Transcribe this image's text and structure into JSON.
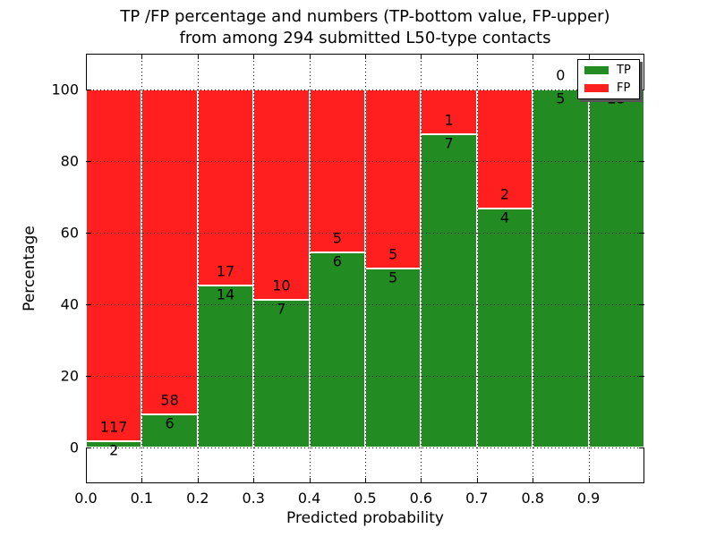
{
  "figure": {
    "title_line1": "TP /FP percentage and numbers (TP-bottom value, FP-upper)",
    "title_line2": "from among 294 submitted L50-type contacts"
  },
  "chart_data": {
    "type": "bar",
    "subtype": "stacked-100-percent",
    "title": "TP /FP percentage and numbers (TP-bottom value, FP-upper) from among 294 submitted L50-type contacts",
    "total_contacts": 294,
    "xlabel": "Predicted probability",
    "ylabel": "Percentage",
    "xlim": [
      0.0,
      1.0
    ],
    "ylim": [
      -10,
      110
    ],
    "bin_width": 0.1,
    "bin_starts": [
      0.0,
      0.1,
      0.2,
      0.3,
      0.4,
      0.5,
      0.6,
      0.7,
      0.8,
      0.9
    ],
    "x_tick_labels": [
      "0.0",
      "0.1",
      "0.2",
      "0.3",
      "0.4",
      "0.5",
      "0.6",
      "0.7",
      "0.8",
      "0.9"
    ],
    "y_ticks": [
      0,
      20,
      40,
      60,
      80,
      100
    ],
    "y_tick_labels": [
      "0",
      "20",
      "40",
      "60",
      "80",
      "100"
    ],
    "grid": "dotted-black-over-bars",
    "bar_edge_color": "#ffffff",
    "series": [
      {
        "name": "TP",
        "color": "#228b22",
        "counts": [
          2,
          6,
          14,
          7,
          6,
          5,
          7,
          4,
          5,
          23
        ]
      },
      {
        "name": "FP",
        "color": "#ff1f1f",
        "counts": [
          117,
          58,
          17,
          10,
          5,
          5,
          1,
          2,
          0,
          0
        ]
      }
    ],
    "tp_percent": [
      1.68,
      9.38,
      45.16,
      41.18,
      54.55,
      50.0,
      87.5,
      66.67,
      100.0,
      100.0
    ],
    "legend": {
      "position": "upper right",
      "entries": [
        {
          "label": "TP",
          "color": "#228b22"
        },
        {
          "label": "FP",
          "color": "#ff1f1f"
        }
      ]
    }
  }
}
